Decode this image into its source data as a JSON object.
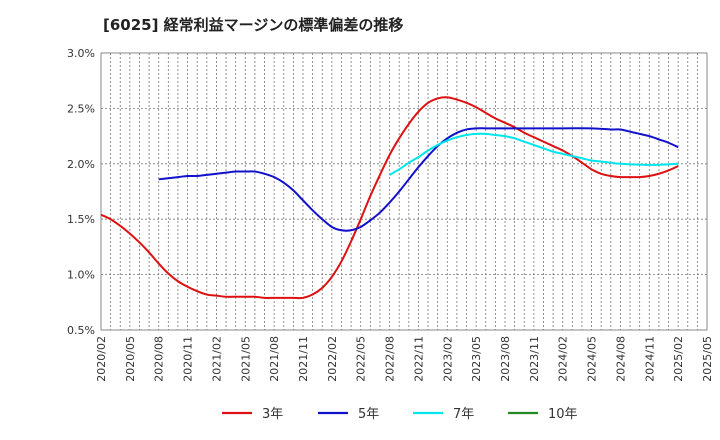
{
  "chart_data": {
    "type": "line",
    "title": "[6025]  経常利益マージンの標準偏差の推移",
    "xlabel": "",
    "ylabel": "",
    "x_ticks": [
      "2020/02",
      "2020/05",
      "2020/08",
      "2020/11",
      "2021/02",
      "2021/05",
      "2021/08",
      "2021/11",
      "2022/02",
      "2022/05",
      "2022/08",
      "2022/11",
      "2023/02",
      "2023/05",
      "2023/08",
      "2023/11",
      "2024/02",
      "2024/05",
      "2024/08",
      "2024/11",
      "2025/02",
      "2025/05"
    ],
    "ylim": [
      0.5,
      3.0
    ],
    "y_ticks": [
      0.5,
      1.0,
      1.5,
      2.0,
      2.5,
      3.0
    ],
    "y_tick_labels": [
      "0.5%",
      "1.0%",
      "1.5%",
      "2.0%",
      "2.5%",
      "3.0%"
    ],
    "grid": true,
    "legend_position": "bottom",
    "series": [
      {
        "name": "3年",
        "color": "#dd1111",
        "points": [
          [
            "2020/02",
            1.54
          ],
          [
            "2020/03",
            1.5
          ],
          [
            "2020/04",
            1.44
          ],
          [
            "2020/05",
            1.37
          ],
          [
            "2020/06",
            1.29
          ],
          [
            "2020/07",
            1.2
          ],
          [
            "2020/08",
            1.1
          ],
          [
            "2020/09",
            1.01
          ],
          [
            "2020/10",
            0.94
          ],
          [
            "2020/11",
            0.89
          ],
          [
            "2020/12",
            0.85
          ],
          [
            "2021/01",
            0.82
          ],
          [
            "2021/02",
            0.81
          ],
          [
            "2021/03",
            0.8
          ],
          [
            "2021/04",
            0.8
          ],
          [
            "2021/05",
            0.8
          ],
          [
            "2021/06",
            0.8
          ],
          [
            "2021/07",
            0.79
          ],
          [
            "2021/08",
            0.79
          ],
          [
            "2021/09",
            0.79
          ],
          [
            "2021/10",
            0.79
          ],
          [
            "2021/11",
            0.79
          ],
          [
            "2021/12",
            0.82
          ],
          [
            "2022/01",
            0.88
          ],
          [
            "2022/02",
            0.98
          ],
          [
            "2022/03",
            1.12
          ],
          [
            "2022/04",
            1.3
          ],
          [
            "2022/05",
            1.5
          ],
          [
            "2022/06",
            1.71
          ],
          [
            "2022/07",
            1.9
          ],
          [
            "2022/08",
            2.08
          ],
          [
            "2022/09",
            2.23
          ],
          [
            "2022/10",
            2.36
          ],
          [
            "2022/11",
            2.47
          ],
          [
            "2022/12",
            2.55
          ],
          [
            "2023/01",
            2.59
          ],
          [
            "2023/02",
            2.6
          ],
          [
            "2023/03",
            2.58
          ],
          [
            "2023/04",
            2.55
          ],
          [
            "2023/05",
            2.51
          ],
          [
            "2023/06",
            2.46
          ],
          [
            "2023/07",
            2.41
          ],
          [
            "2023/08",
            2.37
          ],
          [
            "2023/09",
            2.33
          ],
          [
            "2023/10",
            2.28
          ],
          [
            "2023/11",
            2.24
          ],
          [
            "2023/12",
            2.2
          ],
          [
            "2024/01",
            2.16
          ],
          [
            "2024/02",
            2.12
          ],
          [
            "2024/03",
            2.07
          ],
          [
            "2024/04",
            2.01
          ],
          [
            "2024/05",
            1.95
          ],
          [
            "2024/06",
            1.91
          ],
          [
            "2024/07",
            1.89
          ],
          [
            "2024/08",
            1.88
          ],
          [
            "2024/09",
            1.88
          ],
          [
            "2024/10",
            1.88
          ],
          [
            "2024/11",
            1.89
          ],
          [
            "2024/12",
            1.91
          ],
          [
            "2025/01",
            1.94
          ],
          [
            "2025/02",
            1.98
          ]
        ]
      },
      {
        "name": "5年",
        "color": "#1111cc",
        "points": [
          [
            "2020/08",
            1.86
          ],
          [
            "2020/09",
            1.87
          ],
          [
            "2020/10",
            1.88
          ],
          [
            "2020/11",
            1.89
          ],
          [
            "2020/12",
            1.89
          ],
          [
            "2021/01",
            1.9
          ],
          [
            "2021/02",
            1.91
          ],
          [
            "2021/03",
            1.92
          ],
          [
            "2021/04",
            1.93
          ],
          [
            "2021/05",
            1.93
          ],
          [
            "2021/06",
            1.93
          ],
          [
            "2021/07",
            1.91
          ],
          [
            "2021/08",
            1.88
          ],
          [
            "2021/09",
            1.83
          ],
          [
            "2021/10",
            1.76
          ],
          [
            "2021/11",
            1.67
          ],
          [
            "2021/12",
            1.58
          ],
          [
            "2022/01",
            1.5
          ],
          [
            "2022/02",
            1.43
          ],
          [
            "2022/03",
            1.4
          ],
          [
            "2022/04",
            1.4
          ],
          [
            "2022/05",
            1.43
          ],
          [
            "2022/06",
            1.49
          ],
          [
            "2022/07",
            1.56
          ],
          [
            "2022/08",
            1.65
          ],
          [
            "2022/09",
            1.75
          ],
          [
            "2022/10",
            1.86
          ],
          [
            "2022/11",
            1.97
          ],
          [
            "2022/12",
            2.07
          ],
          [
            "2023/01",
            2.16
          ],
          [
            "2023/02",
            2.23
          ],
          [
            "2023/03",
            2.28
          ],
          [
            "2023/04",
            2.31
          ],
          [
            "2023/05",
            2.32
          ],
          [
            "2023/06",
            2.32
          ],
          [
            "2023/07",
            2.32
          ],
          [
            "2023/08",
            2.32
          ],
          [
            "2023/11",
            2.32
          ],
          [
            "2024/02",
            2.32
          ],
          [
            "2024/05",
            2.32
          ],
          [
            "2024/07",
            2.31
          ],
          [
            "2024/08",
            2.31
          ],
          [
            "2024/09",
            2.29
          ],
          [
            "2024/10",
            2.27
          ],
          [
            "2024/11",
            2.25
          ],
          [
            "2024/12",
            2.22
          ],
          [
            "2025/01",
            2.19
          ],
          [
            "2025/02",
            2.15
          ]
        ]
      },
      {
        "name": "7年",
        "color": "#00e5ee",
        "points": [
          [
            "2022/08",
            1.9
          ],
          [
            "2022/09",
            1.95
          ],
          [
            "2022/10",
            2.01
          ],
          [
            "2022/11",
            2.06
          ],
          [
            "2022/12",
            2.12
          ],
          [
            "2023/01",
            2.17
          ],
          [
            "2023/02",
            2.21
          ],
          [
            "2023/03",
            2.24
          ],
          [
            "2023/04",
            2.26
          ],
          [
            "2023/05",
            2.27
          ],
          [
            "2023/06",
            2.27
          ],
          [
            "2023/07",
            2.26
          ],
          [
            "2023/08",
            2.25
          ],
          [
            "2023/09",
            2.23
          ],
          [
            "2023/10",
            2.2
          ],
          [
            "2023/11",
            2.17
          ],
          [
            "2023/12",
            2.14
          ],
          [
            "2024/01",
            2.11
          ],
          [
            "2024/02",
            2.09
          ],
          [
            "2024/03",
            2.07
          ],
          [
            "2024/04",
            2.05
          ],
          [
            "2024/05",
            2.03
          ],
          [
            "2024/06",
            2.02
          ],
          [
            "2024/07",
            2.01
          ],
          [
            "2024/08",
            2.0
          ],
          [
            "2024/11",
            1.99
          ],
          [
            "2025/02",
            2.0
          ]
        ]
      },
      {
        "name": "10年",
        "color": "#228822",
        "points": []
      }
    ]
  }
}
